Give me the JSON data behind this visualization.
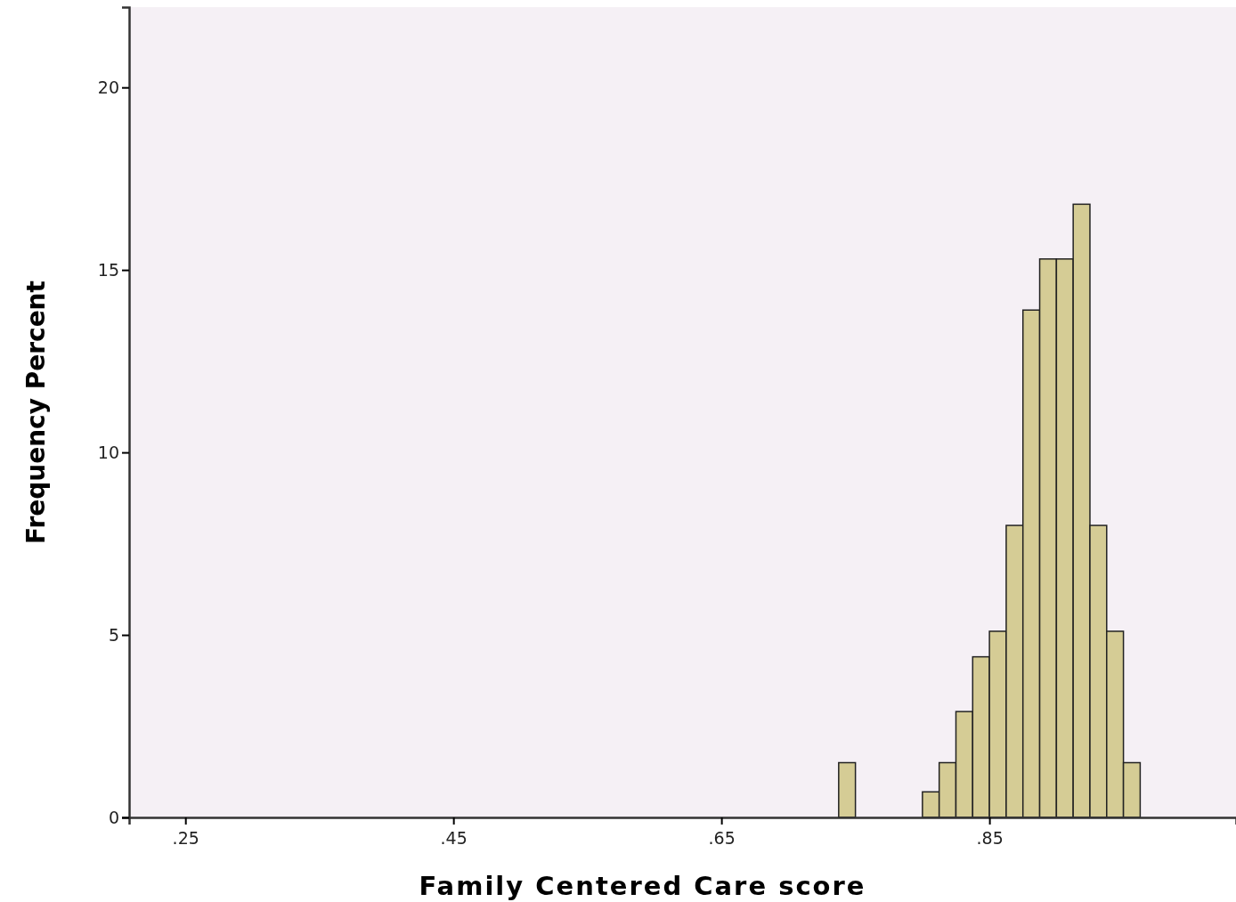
{
  "chart_data": {
    "type": "histogram",
    "xlabel": "Family Centered Care score",
    "ylabel": "Frequency Percent",
    "bins": [
      0.7375,
      0.75,
      0.7625,
      0.775,
      0.7875,
      0.8,
      0.8125,
      0.825,
      0.8375,
      0.85,
      0.8625,
      0.875,
      0.8875,
      0.9,
      0.9125,
      0.925,
      0.9375,
      0.95,
      0.9625
    ],
    "values": [
      1.5,
      0,
      0,
      0,
      0,
      0.7,
      1.5,
      2.9,
      4.4,
      5.1,
      8,
      13.9,
      15.3,
      15.3,
      16.8,
      8,
      5.1,
      1.5
    ],
    "color": "#d5cc95",
    "xlim": [
      0.208,
      1.034
    ],
    "ylim": [
      0,
      22.2
    ],
    "xticks": [
      {
        "value": 0.25,
        "label": ".25"
      },
      {
        "value": 0.45,
        "label": ".45"
      },
      {
        "value": 0.65,
        "label": ".65"
      },
      {
        "value": 0.85,
        "label": ".85"
      }
    ],
    "yticks": [
      0,
      5,
      10,
      15,
      20
    ]
  }
}
